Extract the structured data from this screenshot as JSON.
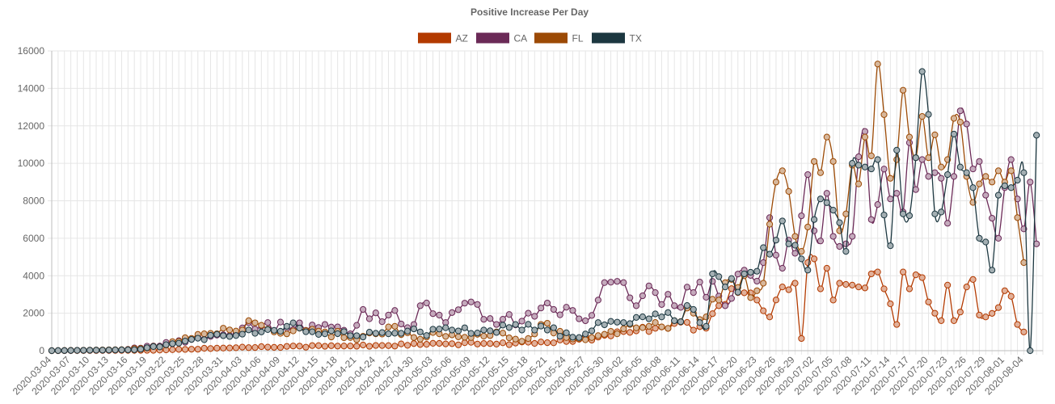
{
  "chart_data": {
    "type": "line",
    "title": "Positive Increase Per Day",
    "ylim": [
      0,
      16000
    ],
    "yticks": [
      0,
      2000,
      4000,
      6000,
      8000,
      10000,
      12000,
      14000,
      16000
    ],
    "start_date": "2020-03-04",
    "end_date": "2020-08-03",
    "x_label_step_days": 3,
    "series": [
      {
        "name": "AZ",
        "color": "#b33a00",
        "anchors": [
          [
            "2020-03-04",
            0
          ],
          [
            "2020-03-20",
            20
          ],
          [
            "2020-03-31",
            140
          ],
          [
            "2020-04-10",
            230
          ],
          [
            "2020-04-20",
            250
          ],
          [
            "2020-05-01",
            330
          ],
          [
            "2020-05-12",
            380
          ],
          [
            "2020-05-22",
            420
          ],
          [
            "2020-05-30",
            820
          ],
          [
            "2020-06-05",
            1250
          ],
          [
            "2020-06-10",
            1450
          ],
          [
            "2020-06-15",
            1200
          ],
          [
            "2020-06-17",
            2400
          ],
          [
            "2020-06-20",
            3100
          ],
          [
            "2020-06-23",
            2700
          ],
          [
            "2020-06-25",
            1800
          ],
          [
            "2020-06-27",
            3400
          ],
          [
            "2020-06-29",
            3600
          ],
          [
            "2020-06-30",
            650
          ],
          [
            "2020-07-01",
            4700
          ],
          [
            "2020-07-02",
            4900
          ],
          [
            "2020-07-03",
            3300
          ],
          [
            "2020-07-04",
            4400
          ],
          [
            "2020-07-05",
            2700
          ],
          [
            "2020-07-06",
            3600
          ],
          [
            "2020-07-08",
            3500
          ],
          [
            "2020-07-09",
            3400
          ],
          [
            "2020-07-11",
            4100
          ],
          [
            "2020-07-12",
            4200
          ],
          [
            "2020-07-13",
            3300
          ],
          [
            "2020-07-14",
            2500
          ],
          [
            "2020-07-15",
            1400
          ],
          [
            "2020-07-16",
            4200
          ],
          [
            "2020-07-17",
            3300
          ],
          [
            "2020-07-19",
            3900
          ],
          [
            "2020-07-20",
            2600
          ],
          [
            "2020-07-22",
            1600
          ],
          [
            "2020-07-23",
            3500
          ],
          [
            "2020-07-24",
            1600
          ],
          [
            "2020-07-26",
            3400
          ],
          [
            "2020-07-27",
            3800
          ],
          [
            "2020-07-28",
            1900
          ],
          [
            "2020-07-29",
            1800
          ],
          [
            "2020-07-31",
            2300
          ],
          [
            "2020-08-01",
            3200
          ],
          [
            "2020-08-02",
            2900
          ],
          [
            "2020-08-03",
            1400
          ],
          [
            "2020-08-04",
            1000
          ]
        ]
      },
      {
        "name": "CA",
        "color": "#6b2a57",
        "anchors": [
          [
            "2020-03-04",
            0
          ],
          [
            "2020-03-15",
            40
          ],
          [
            "2020-03-20",
            250
          ],
          [
            "2020-03-26",
            600
          ],
          [
            "2020-03-31",
            850
          ],
          [
            "2020-04-04",
            1500
          ],
          [
            "2020-04-10",
            1200
          ],
          [
            "2020-04-16",
            1400
          ],
          [
            "2020-04-20",
            900
          ],
          [
            "2020-04-22",
            2200
          ],
          [
            "2020-04-26",
            1900
          ],
          [
            "2020-04-30",
            1400
          ],
          [
            "2020-05-01",
            2400
          ],
          [
            "2020-05-05",
            1500
          ],
          [
            "2020-05-09",
            2600
          ],
          [
            "2020-05-13",
            1400
          ],
          [
            "2020-05-18",
            2000
          ],
          [
            "2020-05-22",
            2200
          ],
          [
            "2020-05-26",
            1700
          ],
          [
            "2020-05-29",
            2700
          ],
          [
            "2020-06-01",
            3700
          ],
          [
            "2020-06-04",
            2400
          ],
          [
            "2020-06-07",
            3100
          ],
          [
            "2020-06-10",
            2400
          ],
          [
            "2020-06-13",
            3100
          ],
          [
            "2020-06-16",
            3700
          ],
          [
            "2020-06-18",
            2400
          ],
          [
            "2020-06-21",
            4300
          ],
          [
            "2020-06-24",
            4700
          ],
          [
            "2020-06-25",
            7100
          ],
          [
            "2020-06-26",
            5100
          ],
          [
            "2020-06-27",
            4400
          ],
          [
            "2020-06-28",
            5900
          ],
          [
            "2020-06-29",
            5200
          ],
          [
            "2020-06-30",
            7200
          ],
          [
            "2020-07-01",
            9400
          ],
          [
            "2020-07-02",
            6400
          ],
          [
            "2020-07-04",
            8400
          ],
          [
            "2020-07-05",
            6100
          ],
          [
            "2020-07-07",
            5700
          ],
          [
            "2020-07-08",
            6100
          ],
          [
            "2020-07-10",
            11700
          ],
          [
            "2020-07-11",
            7000
          ],
          [
            "2020-07-12",
            7800
          ],
          [
            "2020-07-14",
            8100
          ],
          [
            "2020-07-15",
            8400
          ],
          [
            "2020-07-16",
            7400
          ],
          [
            "2020-07-17",
            11100
          ],
          [
            "2020-07-18",
            8600
          ],
          [
            "2020-07-19",
            10200
          ],
          [
            "2020-07-20",
            9300
          ],
          [
            "2020-07-21",
            9500
          ],
          [
            "2020-07-22",
            9200
          ],
          [
            "2020-07-23",
            6800
          ],
          [
            "2020-07-24",
            9300
          ],
          [
            "2020-07-25",
            12800
          ],
          [
            "2020-07-26",
            12100
          ],
          [
            "2020-07-27",
            9700
          ],
          [
            "2020-07-28",
            10100
          ],
          [
            "2020-07-29",
            8300
          ],
          [
            "2020-07-31",
            6000
          ],
          [
            "2020-08-01",
            8700
          ],
          [
            "2020-08-02",
            10200
          ],
          [
            "2020-08-03",
            8100
          ],
          [
            "2020-08-04",
            6500
          ],
          [
            "2020-08-05",
            9000
          ],
          [
            "2020-08-06",
            5700
          ]
        ]
      },
      {
        "name": "FL",
        "color": "#9c4a05",
        "anchors": [
          [
            "2020-03-04",
            0
          ],
          [
            "2020-03-16",
            60
          ],
          [
            "2020-03-22",
            300
          ],
          [
            "2020-03-28",
            900
          ],
          [
            "2020-03-31",
            1200
          ],
          [
            "2020-04-03",
            1100
          ],
          [
            "2020-04-04",
            1600
          ],
          [
            "2020-04-08",
            1000
          ],
          [
            "2020-04-12",
            1200
          ],
          [
            "2020-04-16",
            1000
          ],
          [
            "2020-04-20",
            700
          ],
          [
            "2020-04-24",
            900
          ],
          [
            "2020-04-27",
            1300
          ],
          [
            "2020-04-30",
            700
          ],
          [
            "2020-05-04",
            900
          ],
          [
            "2020-05-09",
            700
          ],
          [
            "2020-05-13",
            1000
          ],
          [
            "2020-05-17",
            500
          ],
          [
            "2020-05-20",
            1400
          ],
          [
            "2020-05-24",
            700
          ],
          [
            "2020-05-28",
            700
          ],
          [
            "2020-06-01",
            900
          ],
          [
            "2020-06-03",
            1400
          ],
          [
            "2020-06-06",
            1300
          ],
          [
            "2020-06-10",
            1600
          ],
          [
            "2020-06-13",
            2000
          ],
          [
            "2020-06-15",
            1800
          ],
          [
            "2020-06-17",
            2700
          ],
          [
            "2020-06-19",
            3800
          ],
          [
            "2020-06-21",
            4000
          ],
          [
            "2020-06-23",
            3200
          ],
          [
            "2020-06-24",
            3600
          ],
          [
            "2020-06-26",
            9000
          ],
          [
            "2020-06-27",
            9600
          ],
          [
            "2020-06-28",
            8500
          ],
          [
            "2020-06-29",
            6100
          ],
          [
            "2020-06-30",
            5300
          ],
          [
            "2020-07-01",
            6600
          ],
          [
            "2020-07-02",
            10100
          ],
          [
            "2020-07-03",
            9500
          ],
          [
            "2020-07-04",
            11400
          ],
          [
            "2020-07-05",
            10100
          ],
          [
            "2020-07-06",
            6400
          ],
          [
            "2020-07-07",
            7300
          ],
          [
            "2020-07-08",
            9900
          ],
          [
            "2020-07-09",
            8900
          ],
          [
            "2020-07-10",
            11400
          ],
          [
            "2020-07-11",
            10400
          ],
          [
            "2020-07-12",
            15300
          ],
          [
            "2020-07-13",
            12600
          ],
          [
            "2020-07-14",
            9200
          ],
          [
            "2020-07-15",
            10200
          ],
          [
            "2020-07-16",
            13900
          ],
          [
            "2020-07-17",
            11400
          ],
          [
            "2020-07-18",
            10300
          ],
          [
            "2020-07-19",
            12500
          ],
          [
            "2020-07-20",
            10300
          ],
          [
            "2020-07-22",
            9800
          ],
          [
            "2020-07-23",
            10200
          ],
          [
            "2020-07-24",
            12400
          ],
          [
            "2020-07-25",
            12200
          ],
          [
            "2020-07-26",
            9300
          ],
          [
            "2020-07-28",
            8900
          ],
          [
            "2020-07-29",
            9300
          ],
          [
            "2020-07-30",
            9000
          ],
          [
            "2020-07-31",
            9600
          ],
          [
            "2020-08-01",
            9000
          ],
          [
            "2020-08-02",
            9600
          ],
          [
            "2020-08-03",
            7100
          ],
          [
            "2020-08-04",
            4700
          ]
        ]
      },
      {
        "name": "TX",
        "color": "#1c3740",
        "anchors": [
          [
            "2020-03-04",
            0
          ],
          [
            "2020-03-17",
            50
          ],
          [
            "2020-03-24",
            400
          ],
          [
            "2020-03-31",
            800
          ],
          [
            "2020-04-06",
            1000
          ],
          [
            "2020-04-10",
            1300
          ],
          [
            "2020-04-16",
            900
          ],
          [
            "2020-04-21",
            800
          ],
          [
            "2020-04-26",
            900
          ],
          [
            "2020-05-01",
            1000
          ],
          [
            "2020-05-06",
            1100
          ],
          [
            "2020-05-11",
            1100
          ],
          [
            "2020-05-16",
            1400
          ],
          [
            "2020-05-21",
            1100
          ],
          [
            "2020-05-26",
            700
          ],
          [
            "2020-05-29",
            1500
          ],
          [
            "2020-06-02",
            1500
          ],
          [
            "2020-06-06",
            1700
          ],
          [
            "2020-06-08",
            1800
          ],
          [
            "2020-06-10",
            1600
          ],
          [
            "2020-06-13",
            2200
          ],
          [
            "2020-06-15",
            1300
          ],
          [
            "2020-06-16",
            4100
          ],
          [
            "2020-06-18",
            3400
          ],
          [
            "2020-06-21",
            4100
          ],
          [
            "2020-06-24",
            5500
          ],
          [
            "2020-06-26",
            5900
          ],
          [
            "2020-06-28",
            5700
          ],
          [
            "2020-06-30",
            4900
          ],
          [
            "2020-07-01",
            4300
          ],
          [
            "2020-07-02",
            7000
          ],
          [
            "2020-07-03",
            8100
          ],
          [
            "2020-07-04",
            7900
          ],
          [
            "2020-07-05",
            7500
          ],
          [
            "2020-07-07",
            5300
          ],
          [
            "2020-07-08",
            10000
          ],
          [
            "2020-07-09",
            9900
          ],
          [
            "2020-07-10",
            9800
          ],
          [
            "2020-07-11",
            9700
          ],
          [
            "2020-07-12",
            10200
          ],
          [
            "2020-07-14",
            5600
          ],
          [
            "2020-07-15",
            10700
          ],
          [
            "2020-07-16",
            7300
          ],
          [
            "2020-07-18",
            10300
          ],
          [
            "2020-07-19",
            14900
          ],
          [
            "2020-07-21",
            7300
          ],
          [
            "2020-07-22",
            7400
          ],
          [
            "2020-07-23",
            9400
          ],
          [
            "2020-07-25",
            9800
          ],
          [
            "2020-07-26",
            9500
          ],
          [
            "2020-07-27",
            8700
          ],
          [
            "2020-07-28",
            6000
          ],
          [
            "2020-07-29",
            5800
          ],
          [
            "2020-07-30",
            4300
          ],
          [
            "2020-07-31",
            8300
          ],
          [
            "2020-08-01",
            8800
          ],
          [
            "2020-08-02",
            8700
          ],
          [
            "2020-08-03",
            9100
          ],
          [
            "2020-08-04",
            9500
          ],
          [
            "2020-08-05",
            0
          ],
          [
            "2020-08-06",
            11500
          ]
        ]
      }
    ]
  }
}
